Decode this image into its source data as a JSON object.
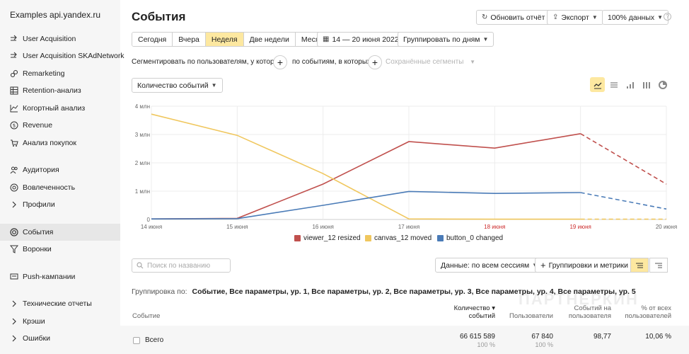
{
  "app": {
    "title": "Examples api.yandex.ru"
  },
  "sidebar": {
    "items": [
      {
        "label": "User Acquisition",
        "icon": "acquisition-icon"
      },
      {
        "label": "User Acquisition SKAdNetwork",
        "icon": "acquisition-icon"
      },
      {
        "label": "Remarketing",
        "icon": "link-icon"
      },
      {
        "label": "Retention-анализ",
        "icon": "grid-icon"
      },
      {
        "label": "Когортный анализ",
        "icon": "chart-icon"
      },
      {
        "label": "Revenue",
        "icon": "dollar-icon"
      },
      {
        "label": "Анализ покупок",
        "icon": "cart-icon"
      },
      {
        "label": "Аудитория",
        "icon": "people-icon"
      },
      {
        "label": "Вовлеченность",
        "icon": "engagement-icon"
      },
      {
        "label": "Профили",
        "icon": "chevron-right-icon"
      },
      {
        "label": "События",
        "icon": "target-icon"
      },
      {
        "label": "Воронки",
        "icon": "funnel-icon"
      },
      {
        "label": "Push-кампании",
        "icon": "message-icon"
      },
      {
        "label": "Технические отчеты",
        "icon": "chevron-right-icon"
      },
      {
        "label": "Крэши",
        "icon": "chevron-right-icon"
      },
      {
        "label": "Ошибки",
        "icon": "chevron-right-icon"
      }
    ],
    "active_index": 10
  },
  "header": {
    "title": "События",
    "refresh_label": "Обновить отчёт",
    "export_label": "Экспорт",
    "sampling_label": "100% данных",
    "help": "?"
  },
  "period": {
    "options": [
      "Сегодня",
      "Вчера",
      "Неделя",
      "Две недели",
      "Месяц"
    ],
    "active": "Неделя",
    "date_range": "14 — 20 июня 2022",
    "group_by": "Группировать по дням"
  },
  "segment": {
    "users_text": "Сегментировать по пользователям, у которых",
    "events_text": "по событиям, в которых",
    "saved_segments": "Сохранённые сегменты"
  },
  "metric_select": {
    "value": "Количество событий"
  },
  "chart_data": {
    "type": "line",
    "x": [
      "14 июня",
      "15 июня",
      "16 июня",
      "17 июня",
      "18 июня",
      "19 июня",
      "20 июня"
    ],
    "weekend_x": [
      "18 июня",
      "19 июня"
    ],
    "y_ticks": [
      "0",
      "1 млн",
      "2 млн",
      "3 млн",
      "4 млн"
    ],
    "ylim": [
      0,
      4000000
    ],
    "dashed_from_index": 5,
    "series": [
      {
        "name": "viewer_12 resized",
        "color": "#c0504d",
        "values": [
          20000,
          40000,
          1250000,
          2750000,
          2520000,
          3030000,
          1250000
        ]
      },
      {
        "name": "canvas_12 moved",
        "color": "#f0c75e",
        "values": [
          3720000,
          2970000,
          1620000,
          20000,
          10000,
          10000,
          10000
        ]
      },
      {
        "name": "button_0 changed",
        "color": "#4a7bb7",
        "values": [
          20000,
          30000,
          500000,
          990000,
          920000,
          950000,
          370000
        ]
      }
    ]
  },
  "table": {
    "search_placeholder": "Поиск по названию",
    "data_scope": "Данные: по всем сессиям",
    "groupings_button": "Группировки и метрики",
    "grouping_prefix": "Группировка по:",
    "grouping_value": "Событие, Все параметры, ур. 1, Все параметры, ур. 2, Все параметры, ур. 3, Все параметры, ур. 4, Все параметры, ур. 5",
    "watermark": "ПАРТНЕРКИН",
    "headers": {
      "event": "Событие",
      "count_line1": "Количество ▾",
      "count_line2": "событий",
      "users": "Пользователи",
      "per_user_line1": "Событий на",
      "per_user_line2": "пользователя",
      "share_line1": "% от всех",
      "share_line2": "пользователей"
    },
    "total": {
      "label": "Всего",
      "count": "66 615 589",
      "count_pct": "100 %",
      "users": "67 840",
      "users_pct": "100 %",
      "per_user": "98,77",
      "share": "10,06 %"
    }
  }
}
